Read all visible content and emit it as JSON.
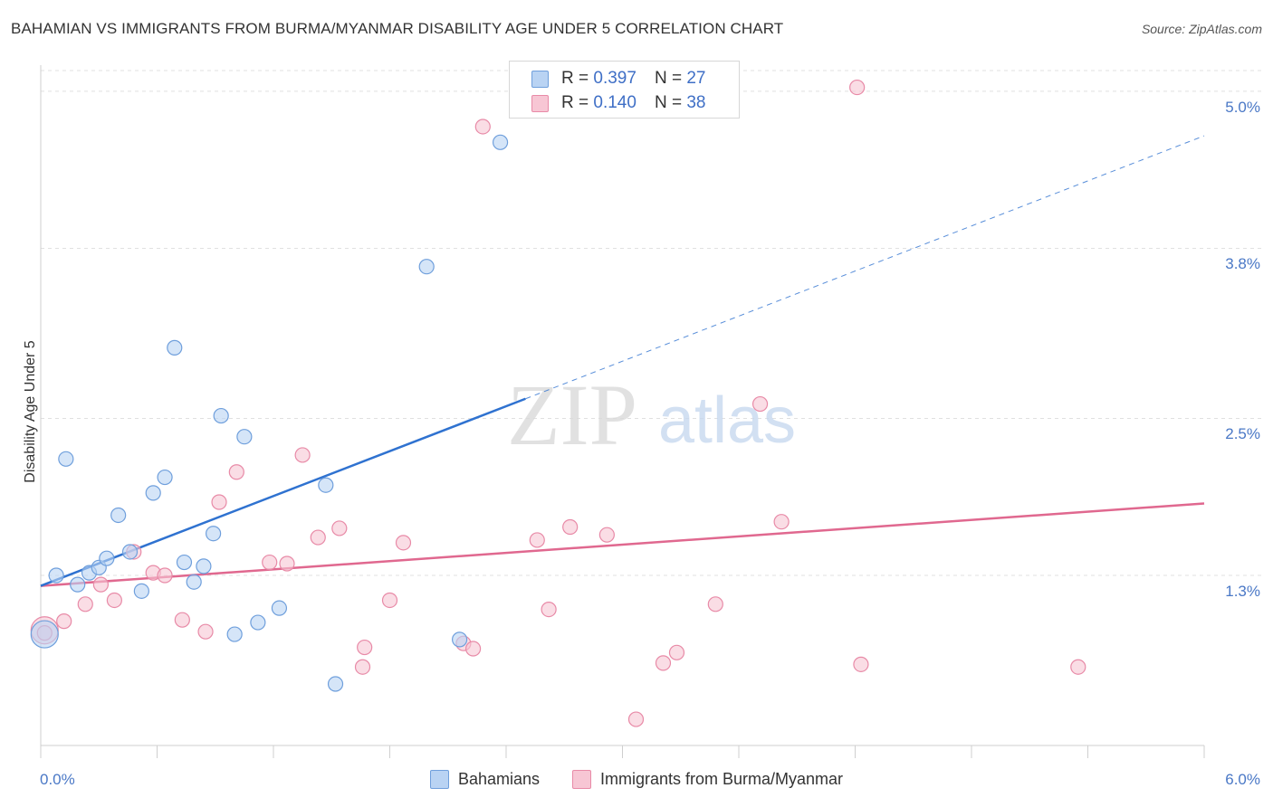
{
  "header": {
    "title": "BAHAMIAN VS IMMIGRANTS FROM BURMA/MYANMAR DISABILITY AGE UNDER 5 CORRELATION CHART",
    "source": "Source: ZipAtlas.com"
  },
  "watermark": {
    "zip": "ZIP",
    "atlas": "atlas"
  },
  "legend": {
    "rows": [
      {
        "r_label": "R =",
        "r_value": "0.397",
        "n_label": "N =",
        "n_value": "27"
      },
      {
        "r_label": "R =",
        "r_value": "0.140",
        "n_label": "N =",
        "n_value": "38"
      }
    ]
  },
  "colors": {
    "blue_fill": "#b9d3f3",
    "blue_stroke": "#6f9fdc",
    "blue_line": "#2f72d0",
    "pink_fill": "#f7c6d4",
    "pink_stroke": "#e88aa7",
    "pink_line": "#e0688f",
    "grid": "#e0e0e0",
    "tick_text": "#4a78c6"
  },
  "chart_data": {
    "type": "scatter",
    "title": "BAHAMIAN VS IMMIGRANTS FROM BURMA/MYANMAR DISABILITY AGE UNDER 5 CORRELATION CHART",
    "xlabel": "",
    "ylabel": "Disability Age Under 5",
    "xlim": [
      0.0,
      6.0
    ],
    "ylim": [
      0.0,
      5.2
    ],
    "x_tick_labels": {
      "left": "0.0%",
      "right": "6.0%"
    },
    "y_ticks": [
      {
        "value": 1.3,
        "label": "1.3%"
      },
      {
        "value": 2.5,
        "label": "2.5%"
      },
      {
        "value": 3.8,
        "label": "3.8%"
      },
      {
        "value": 5.0,
        "label": "5.0%"
      }
    ],
    "grid": true,
    "series": [
      {
        "name": "Bahamians",
        "color": "#6f9fdc",
        "points": [
          [
            0.02,
            0.85
          ],
          [
            0.08,
            1.3
          ],
          [
            0.13,
            2.19
          ],
          [
            0.19,
            1.23
          ],
          [
            0.25,
            1.32
          ],
          [
            0.3,
            1.36
          ],
          [
            0.34,
            1.43
          ],
          [
            0.4,
            1.76
          ],
          [
            0.46,
            1.48
          ],
          [
            0.52,
            1.18
          ],
          [
            0.58,
            1.93
          ],
          [
            0.64,
            2.05
          ],
          [
            0.69,
            3.04
          ],
          [
            0.74,
            1.4
          ],
          [
            0.79,
            1.25
          ],
          [
            0.84,
            1.37
          ],
          [
            0.89,
            1.62
          ],
          [
            0.93,
            2.52
          ],
          [
            1.0,
            0.85
          ],
          [
            1.05,
            2.36
          ],
          [
            1.12,
            0.94
          ],
          [
            1.23,
            1.05
          ],
          [
            1.47,
            1.99
          ],
          [
            1.52,
            0.47
          ],
          [
            1.99,
            3.66
          ],
          [
            2.16,
            0.81
          ],
          [
            2.37,
            4.61
          ]
        ],
        "trend": {
          "x0": 0.0,
          "y0": 1.22,
          "x1": 2.5,
          "y1": 2.65,
          "dash_to_x": 6.0,
          "dash_to_y": 4.66
        }
      },
      {
        "name": "Immigrants from Burma/Myanmar",
        "color": "#e88aa7",
        "points": [
          [
            0.02,
            0.88
          ],
          [
            0.12,
            0.95
          ],
          [
            0.23,
            1.08
          ],
          [
            0.31,
            1.23
          ],
          [
            0.38,
            1.11
          ],
          [
            0.48,
            1.48
          ],
          [
            0.58,
            1.32
          ],
          [
            0.64,
            1.3
          ],
          [
            0.73,
            0.96
          ],
          [
            0.85,
            0.87
          ],
          [
            0.92,
            1.86
          ],
          [
            1.01,
            2.09
          ],
          [
            1.18,
            1.4
          ],
          [
            1.27,
            1.39
          ],
          [
            1.35,
            2.22
          ],
          [
            1.43,
            1.59
          ],
          [
            1.54,
            1.66
          ],
          [
            1.66,
            0.6
          ],
          [
            1.67,
            0.75
          ],
          [
            1.8,
            1.11
          ],
          [
            1.87,
            1.55
          ],
          [
            2.18,
            0.78
          ],
          [
            2.23,
            0.74
          ],
          [
            2.28,
            4.73
          ],
          [
            2.56,
            1.57
          ],
          [
            2.62,
            1.04
          ],
          [
            2.73,
            1.67
          ],
          [
            2.92,
            1.61
          ],
          [
            3.07,
            0.2
          ],
          [
            3.21,
            0.63
          ],
          [
            3.28,
            0.71
          ],
          [
            3.48,
            1.08
          ],
          [
            3.71,
            2.61
          ],
          [
            3.82,
            1.71
          ],
          [
            4.21,
            5.03
          ],
          [
            4.23,
            0.62
          ],
          [
            5.35,
            0.6
          ],
          [
            0.02,
            0.86
          ]
        ],
        "trend": {
          "x0": 0.0,
          "y0": 1.22,
          "x1": 6.0,
          "y1": 1.85
        }
      }
    ]
  }
}
